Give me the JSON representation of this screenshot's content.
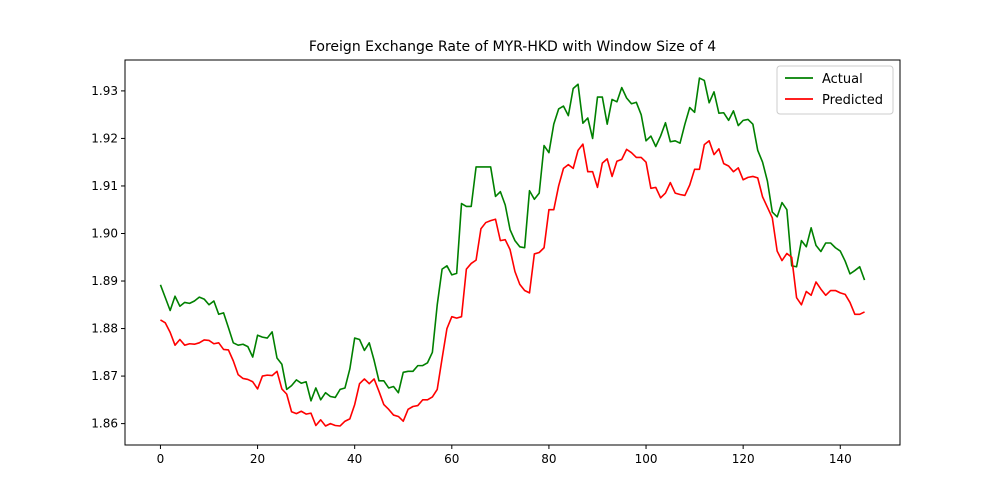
{
  "chart_data": {
    "type": "line",
    "title": "Foreign Exchange Rate of MYR-HKD with Window Size of 4",
    "xlabel": "",
    "ylabel": "",
    "xlim": [
      -7.3,
      152.3
    ],
    "ylim": [
      1.8555,
      1.9365
    ],
    "xticks": [
      0,
      20,
      40,
      60,
      80,
      100,
      120,
      140
    ],
    "yticks": [
      1.86,
      1.87,
      1.88,
      1.89,
      1.9,
      1.91,
      1.92,
      1.93
    ],
    "ytick_labels": [
      "1.86",
      "1.87",
      "1.88",
      "1.89",
      "1.90",
      "1.91",
      "1.92",
      "1.93"
    ],
    "grid": false,
    "legend": {
      "placement": "top-right"
    },
    "series": [
      {
        "name": "Actual",
        "color": "#008000",
        "values": [
          1.8892,
          1.8865,
          1.8838,
          1.8868,
          1.8847,
          1.8855,
          1.8853,
          1.8858,
          1.8866,
          1.8862,
          1.885,
          1.8858,
          1.883,
          1.8833,
          1.8802,
          1.877,
          1.8765,
          1.8767,
          1.8762,
          1.874,
          1.8786,
          1.8782,
          1.878,
          1.8793,
          1.8738,
          1.8725,
          1.8672,
          1.868,
          1.8692,
          1.8685,
          1.8688,
          1.8648,
          1.8675,
          1.865,
          1.8665,
          1.8657,
          1.8655,
          1.8672,
          1.8675,
          1.8715,
          1.878,
          1.8777,
          1.8754,
          1.877,
          1.8733,
          1.869,
          1.869,
          1.8675,
          1.8678,
          1.8665,
          1.8708,
          1.871,
          1.871,
          1.8722,
          1.8722,
          1.8728,
          1.875,
          1.885,
          1.8925,
          1.8932,
          1.8913,
          1.8916,
          1.9063,
          1.9057,
          1.9057,
          1.914,
          1.914,
          1.914,
          1.914,
          1.9078,
          1.9088,
          1.906,
          1.9008,
          1.8985,
          1.8972,
          1.897,
          1.909,
          1.9072,
          1.9085,
          1.9185,
          1.917,
          1.923,
          1.9262,
          1.9268,
          1.9248,
          1.9305,
          1.9314,
          1.9232,
          1.9243,
          1.92,
          1.9287,
          1.9287,
          1.923,
          1.9282,
          1.9277,
          1.9307,
          1.9285,
          1.9273,
          1.9276,
          1.925,
          1.9195,
          1.9205,
          1.9183,
          1.9205,
          1.9233,
          1.9193,
          1.9195,
          1.919,
          1.923,
          1.9265,
          1.9255,
          1.9327,
          1.9322,
          1.9275,
          1.9298,
          1.9253,
          1.9254,
          1.9238,
          1.9258,
          1.9227,
          1.9238,
          1.924,
          1.923,
          1.9175,
          1.915,
          1.911,
          1.9045,
          1.9035,
          1.9065,
          1.905,
          1.8932,
          1.893,
          1.8985,
          1.8972,
          1.9012,
          1.8975,
          1.8962,
          1.898,
          1.898,
          1.897,
          1.8963,
          1.8942,
          1.8915,
          1.8922,
          1.893,
          1.8902
        ]
      },
      {
        "name": "Predicted",
        "color": "#ff0000",
        "values": [
          1.8818,
          1.8812,
          1.8792,
          1.8765,
          1.8777,
          1.8765,
          1.8768,
          1.8767,
          1.877,
          1.8776,
          1.8775,
          1.8768,
          1.877,
          1.8756,
          1.8755,
          1.8732,
          1.8703,
          1.8695,
          1.8693,
          1.8688,
          1.8673,
          1.87,
          1.8702,
          1.8701,
          1.871,
          1.8673,
          1.8662,
          1.8625,
          1.8621,
          1.8626,
          1.862,
          1.8622,
          1.8596,
          1.8608,
          1.8595,
          1.86,
          1.8596,
          1.8595,
          1.8605,
          1.861,
          1.864,
          1.8684,
          1.8694,
          1.8684,
          1.8694,
          1.8668,
          1.864,
          1.863,
          1.8618,
          1.8615,
          1.8605,
          1.863,
          1.8636,
          1.8638,
          1.865,
          1.865,
          1.8656,
          1.8672,
          1.8737,
          1.88,
          1.8825,
          1.8822,
          1.8825,
          1.8925,
          1.8937,
          1.8944,
          1.901,
          1.9023,
          1.9027,
          1.903,
          1.8985,
          1.8987,
          1.8966,
          1.892,
          1.8893,
          1.888,
          1.8875,
          1.8957,
          1.896,
          1.897,
          1.905,
          1.905,
          1.91,
          1.9137,
          1.9145,
          1.9137,
          1.9175,
          1.9188,
          1.913,
          1.913,
          1.9097,
          1.9148,
          1.9157,
          1.912,
          1.9152,
          1.9156,
          1.9177,
          1.917,
          1.916,
          1.916,
          1.915,
          1.9095,
          1.9097,
          1.9075,
          1.9085,
          1.9107,
          1.9085,
          1.9082,
          1.908,
          1.9102,
          1.9135,
          1.9135,
          1.9187,
          1.9195,
          1.9166,
          1.9178,
          1.9147,
          1.9142,
          1.913,
          1.9138,
          1.9113,
          1.9118,
          1.912,
          1.9117,
          1.9077,
          1.9055,
          1.9033,
          1.8963,
          1.8943,
          1.8958,
          1.895,
          1.8865,
          1.885,
          1.8878,
          1.887,
          1.8898,
          1.8883,
          1.887,
          1.888,
          1.888,
          1.8875,
          1.8872,
          1.8855,
          1.883,
          1.883,
          1.8835
        ]
      }
    ]
  }
}
